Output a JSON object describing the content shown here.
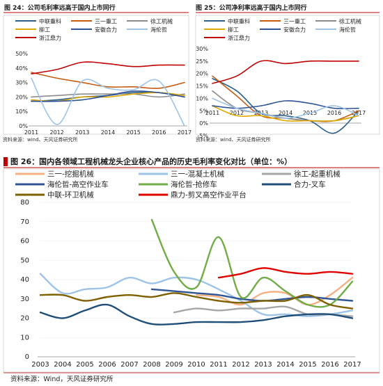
{
  "chart_data": [
    {
      "type": "line",
      "title": "图 24：公司毛利率远高于国内上市同行",
      "source": "资料来源：wind、天风证券研究所",
      "x": [
        "2011",
        "2012",
        "2013",
        "2014",
        "2015",
        "2016",
        "2017"
      ],
      "ylim": [
        0,
        50
      ],
      "yticks": [
        "0%",
        "10%",
        "20%",
        "30%",
        "40%",
        "50%"
      ],
      "legend_placement": "top",
      "series": [
        {
          "name": "中联重科",
          "color": "#2e5f8a",
          "values": [
            17,
            18,
            20,
            21,
            23,
            23,
            20
          ]
        },
        {
          "name": "三一重工",
          "color": "#c55a11",
          "values": [
            37,
            33,
            30,
            27,
            27,
            26,
            30
          ]
        },
        {
          "name": "徐工机械",
          "color": "#8c8c8c",
          "values": [
            20,
            21,
            22,
            22,
            22,
            20,
            22
          ]
        },
        {
          "name": "柳工",
          "color": "#e0a800",
          "values": [
            18,
            17,
            20,
            20,
            22,
            23,
            21
          ]
        },
        {
          "name": "安徽合力",
          "color": "#2f5496",
          "values": [
            17,
            17,
            18,
            21,
            24,
            23,
            20
          ]
        },
        {
          "name": "海伦哲",
          "color": "#9dc3e6",
          "values": [
            33,
            1,
            31,
            26,
            25,
            31,
            0
          ]
        },
        {
          "name": "浙江鼎力",
          "color": "#c00000",
          "values": [
            36,
            39,
            44,
            43,
            41,
            42,
            42
          ]
        }
      ]
    },
    {
      "type": "line",
      "title": "图 25：公司净利率远高于国内上市同行",
      "source": "资料来源：wind、天风证券研究所",
      "x": [
        "2011",
        "2012",
        "2013",
        "2014",
        "2015",
        "2016",
        "2017"
      ],
      "ylim": [
        -5,
        30
      ],
      "yticks": [
        "-5%",
        "0%",
        "5%",
        "10%",
        "15%",
        "20%",
        "25%",
        "30%"
      ],
      "legend_placement": "top",
      "series": [
        {
          "name": "中联重科",
          "color": "#2e5f8a",
          "values": [
            18,
            13,
            4,
            3,
            1,
            -4,
            5
          ]
        },
        {
          "name": "三一重工",
          "color": "#c55a11",
          "values": [
            19,
            11,
            3,
            2,
            1,
            1,
            5
          ]
        },
        {
          "name": "徐工机械",
          "color": "#8c8c8c",
          "values": [
            13,
            6,
            4,
            2,
            1,
            1,
            3
          ]
        },
        {
          "name": "柳工",
          "color": "#e0a800",
          "values": [
            7,
            3,
            3,
            1,
            1,
            1,
            3
          ]
        },
        {
          "name": "安徽合力",
          "color": "#2f5496",
          "values": [
            7,
            6,
            7,
            9,
            8,
            6,
            6
          ]
        },
        {
          "name": "海伦哲",
          "color": "#9dc3e6",
          "values": [
            10,
            6,
            4,
            2,
            4,
            7,
            3
          ]
        },
        {
          "name": "浙江鼎力",
          "color": "#c00000",
          "values": [
            16,
            19,
            25,
            24,
            25,
            25,
            25
          ]
        }
      ]
    },
    {
      "type": "line",
      "title": "图 26：国内各领域工程机械龙头企业核心产品的历史毛利率变化对比（单位：%）",
      "source": "资料来源：Wind，天风证券研究所",
      "x": [
        "2003",
        "2004",
        "2005",
        "2006",
        "2007",
        "2008",
        "2009",
        "2010",
        "2011",
        "2012",
        "2013",
        "2014",
        "2015",
        "2016",
        "2017"
      ],
      "ylim": [
        0,
        80
      ],
      "yticks": [
        "0",
        "10",
        "20",
        "30",
        "40",
        "50",
        "60",
        "70",
        "80"
      ],
      "legend_placement": "top",
      "series": [
        {
          "name": "三一-挖掘机械",
          "color": "#f4b183",
          "values": [
            null,
            null,
            null,
            null,
            null,
            null,
            null,
            32,
            31,
            27,
            33,
            33,
            27,
            32,
            41
          ]
        },
        {
          "name": "三一-混凝土机械",
          "color": "#9dc3e6",
          "values": [
            43,
            33,
            35,
            36,
            41,
            38,
            41,
            40,
            35,
            29,
            22,
            22,
            21,
            22,
            24
          ]
        },
        {
          "name": "徐工-起重机械",
          "color": "#a6a6a6",
          "values": [
            null,
            null,
            null,
            null,
            null,
            null,
            23,
            25,
            24,
            25,
            25,
            26,
            22,
            22,
            21
          ]
        },
        {
          "name": "海伦哲-高空作业车",
          "color": "#2f5496",
          "values": [
            null,
            null,
            null,
            null,
            null,
            35,
            34,
            33,
            32,
            30,
            29,
            30,
            31,
            30,
            29
          ]
        },
        {
          "name": "海伦哲-抢修车",
          "color": "#70ad47",
          "values": [
            null,
            null,
            null,
            null,
            null,
            71,
            44,
            36,
            62,
            31,
            41,
            34,
            27,
            27,
            39
          ]
        },
        {
          "name": "合力-叉车",
          "color": "#1f4e79",
          "values": [
            23,
            20,
            24,
            27,
            21,
            17,
            17,
            18,
            18,
            18,
            19,
            21,
            22,
            22,
            20
          ]
        },
        {
          "name": "中联-环卫机械",
          "color": "#7f6000",
          "values": [
            32,
            32,
            29,
            31,
            32,
            31,
            33,
            31,
            29,
            28,
            29,
            29,
            32,
            27,
            25
          ]
        },
        {
          "name": "鼎力-剪叉高空作业平台",
          "color": "#e00000",
          "values": [
            null,
            null,
            null,
            null,
            null,
            null,
            null,
            null,
            41,
            43,
            46,
            44,
            43,
            44,
            43
          ]
        }
      ]
    }
  ]
}
